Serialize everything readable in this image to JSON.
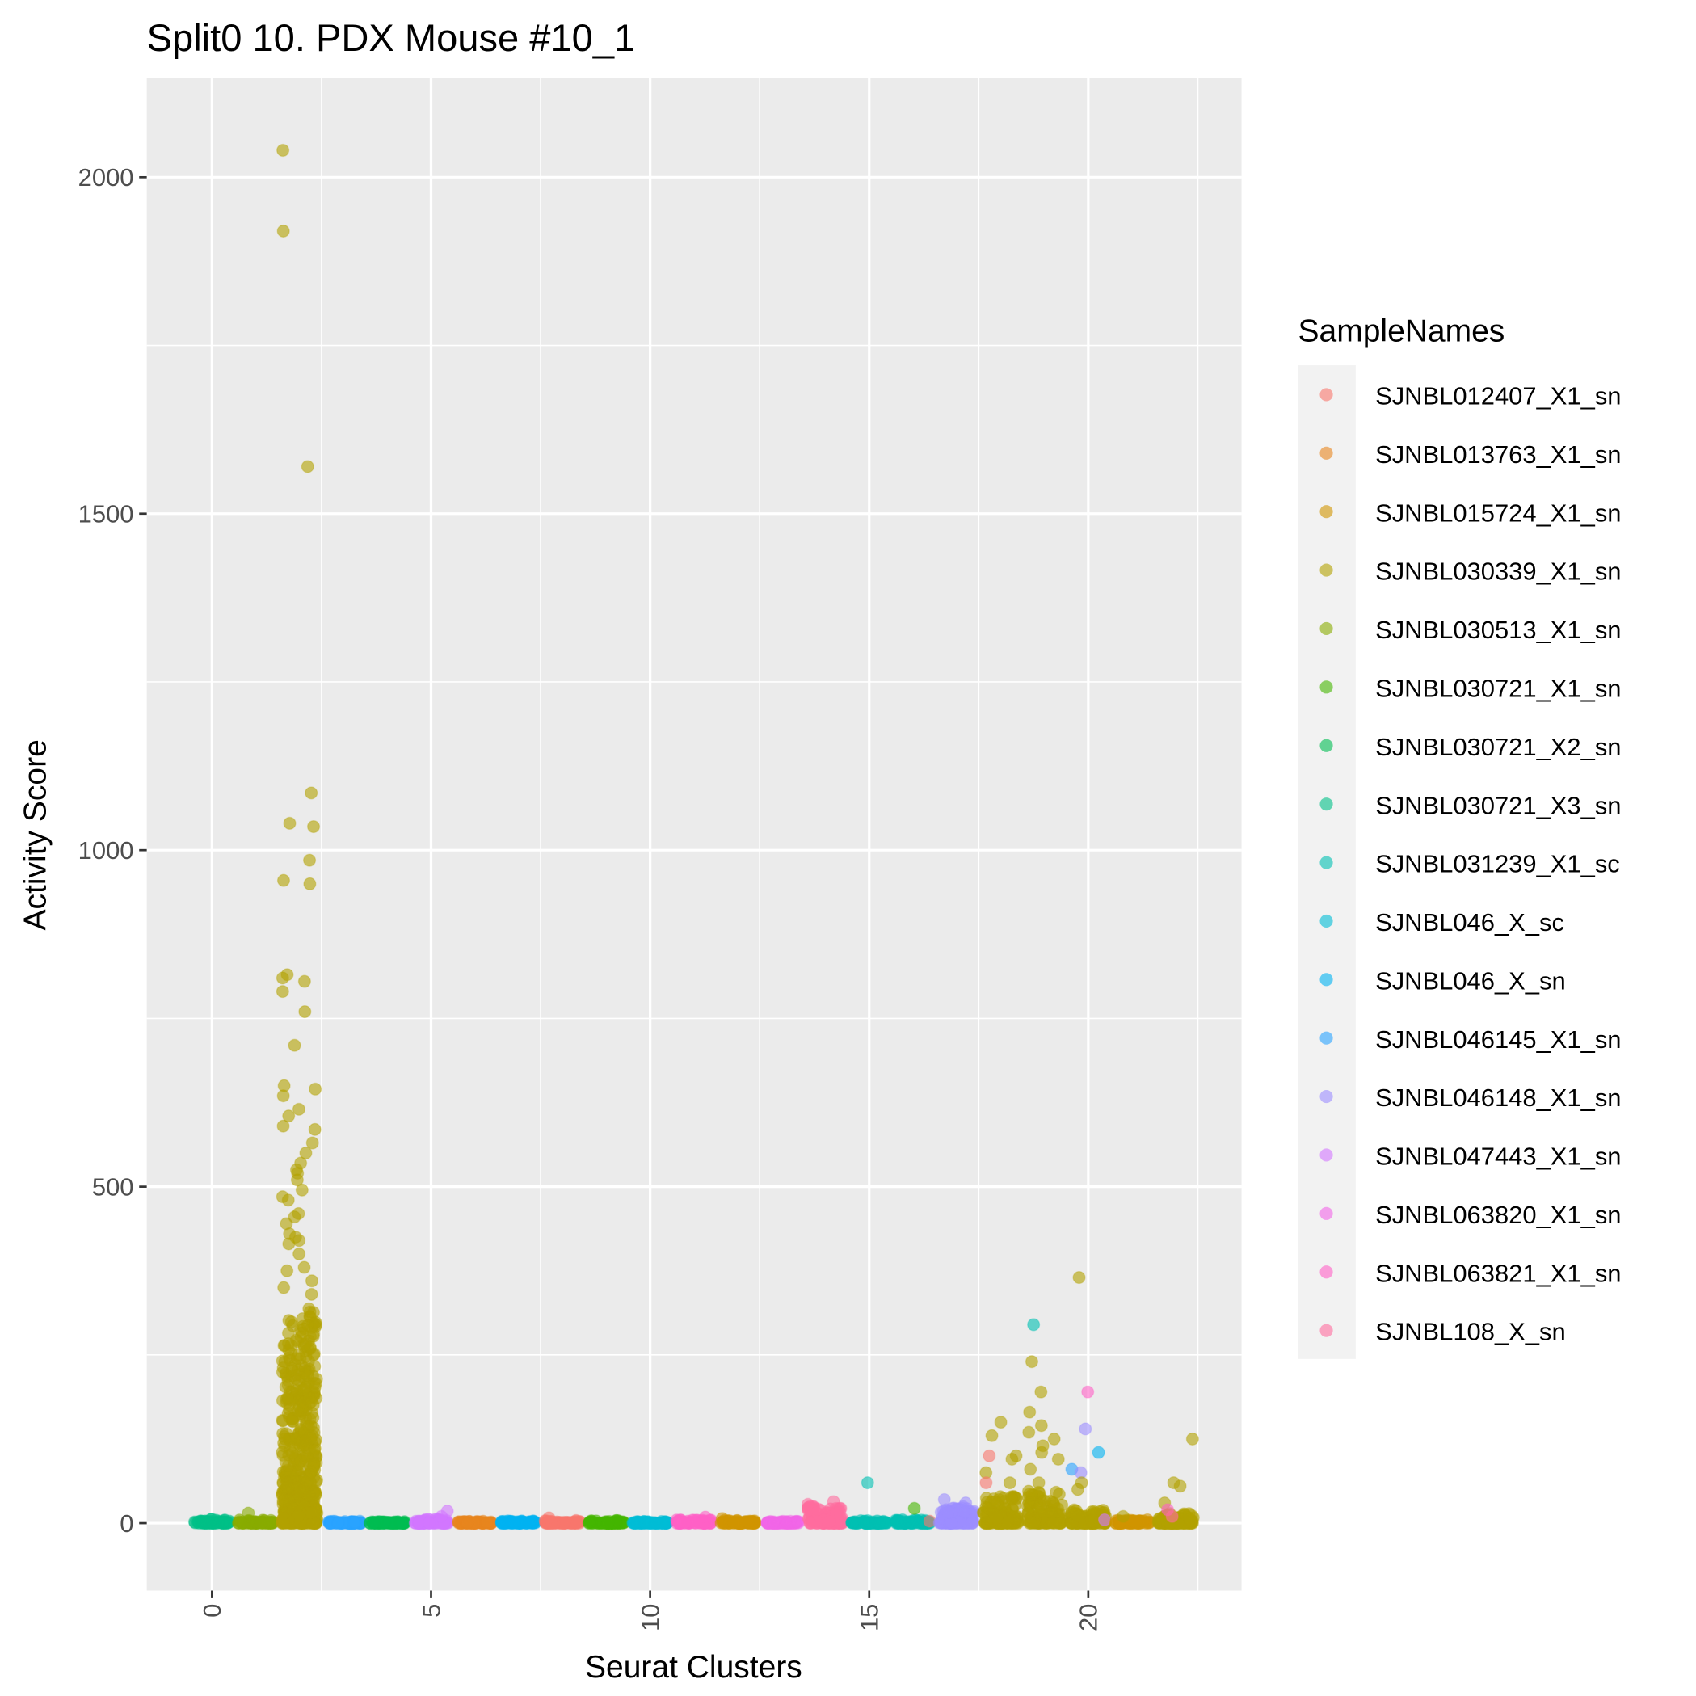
{
  "chart_data": {
    "type": "scatter",
    "title": "Split0 10. PDX Mouse #10_1",
    "xlabel": "Seurat Clusters",
    "ylabel": "Activity Score",
    "xlim": [
      -1.5,
      23.5
    ],
    "ylim": [
      -100,
      2150
    ],
    "x_ticks": [
      "0",
      "5",
      "10",
      "15",
      "20"
    ],
    "x_tick_values": [
      0,
      5,
      10,
      15,
      20
    ],
    "y_ticks": [
      "0",
      "500",
      "1000",
      "1500",
      "2000"
    ],
    "y_tick_values": [
      0,
      500,
      1000,
      1500,
      2000
    ],
    "grid": true,
    "legend": {
      "title": "SampleNames",
      "placement": "right",
      "entries": [
        "SJNBL012407_X1_sn",
        "SJNBL013763_X1_sn",
        "SJNBL015724_X1_sn",
        "SJNBL030339_X1_sn",
        "SJNBL030513_X1_sn",
        "SJNBL030721_X1_sn",
        "SJNBL030721_X2_sn",
        "SJNBL030721_X3_sn",
        "SJNBL031239_X1_sc",
        "SJNBL046_X_sc",
        "SJNBL046_X_sn",
        "SJNBL046145_X1_sn",
        "SJNBL046148_X1_sn",
        "SJNBL047443_X1_sn",
        "SJNBL063820_X1_sn",
        "SJNBL063821_X1_sn",
        "SJNBL108_X_sn"
      ],
      "colors": [
        "#F8766D",
        "#E7851E",
        "#D09400",
        "#B2A100",
        "#89AC00",
        "#45B500",
        "#00BC51",
        "#00C087",
        "#00C0B2",
        "#00BCD6",
        "#00B3F2",
        "#29A3FF",
        "#9C8DFF",
        "#D277FF",
        "#F166E8",
        "#FF61C7",
        "#FF6C9E"
      ]
    },
    "clusters": [
      {
        "cluster": 0,
        "sample": 7,
        "dense_max": 6,
        "outliers": []
      },
      {
        "cluster": 1,
        "sample": 4,
        "dense_max": 5,
        "outliers": [
          [
            4,
            15
          ]
        ]
      },
      {
        "cluster": 2,
        "sample": 3,
        "dense_max": 320,
        "outliers": [
          [
            3,
            2040
          ],
          [
            3,
            1920
          ],
          [
            3,
            1570
          ],
          [
            3,
            1085
          ],
          [
            3,
            1040
          ],
          [
            3,
            1035
          ],
          [
            3,
            985
          ],
          [
            3,
            955
          ],
          [
            3,
            950
          ],
          [
            3,
            815
          ],
          [
            3,
            810
          ],
          [
            3,
            805
          ],
          [
            3,
            790
          ],
          [
            3,
            760
          ],
          [
            3,
            710
          ],
          [
            3,
            650
          ],
          [
            3,
            645
          ],
          [
            3,
            635
          ],
          [
            3,
            615
          ],
          [
            3,
            605
          ],
          [
            3,
            590
          ],
          [
            3,
            585
          ],
          [
            3,
            565
          ],
          [
            3,
            550
          ],
          [
            3,
            535
          ],
          [
            3,
            525
          ],
          [
            3,
            520
          ],
          [
            3,
            510
          ],
          [
            3,
            495
          ],
          [
            3,
            485
          ],
          [
            3,
            480
          ],
          [
            3,
            460
          ],
          [
            3,
            455
          ],
          [
            3,
            445
          ],
          [
            3,
            430
          ],
          [
            3,
            425
          ],
          [
            3,
            420
          ],
          [
            3,
            415
          ],
          [
            3,
            400
          ],
          [
            3,
            380
          ],
          [
            3,
            375
          ],
          [
            3,
            360
          ],
          [
            3,
            350
          ],
          [
            3,
            340
          ]
        ]
      },
      {
        "cluster": 3,
        "sample": 11,
        "dense_max": 3,
        "outliers": []
      },
      {
        "cluster": 4,
        "sample": 6,
        "dense_max": 3,
        "outliers": []
      },
      {
        "cluster": 5,
        "sample": 13,
        "dense_max": 6,
        "outliers": [
          [
            13,
            18
          ],
          [
            13,
            10
          ]
        ]
      },
      {
        "cluster": 6,
        "sample": 1,
        "dense_max": 3,
        "outliers": []
      },
      {
        "cluster": 7,
        "sample": 10,
        "dense_max": 4,
        "outliers": []
      },
      {
        "cluster": 8,
        "sample": 0,
        "dense_max": 4,
        "outliers": [
          [
            0,
            8
          ]
        ]
      },
      {
        "cluster": 9,
        "sample": 5,
        "dense_max": 4,
        "outliers": []
      },
      {
        "cluster": 10,
        "sample": 9,
        "dense_max": 3,
        "outliers": []
      },
      {
        "cluster": 11,
        "sample": 15,
        "dense_max": 5,
        "outliers": [
          [
            15,
            9
          ]
        ]
      },
      {
        "cluster": 12,
        "sample": 2,
        "dense_max": 4,
        "outliers": [
          [
            2,
            7
          ]
        ]
      },
      {
        "cluster": 13,
        "sample": 14,
        "dense_max": 3,
        "outliers": []
      },
      {
        "cluster": 14,
        "sample": 16,
        "dense_max": 25,
        "outliers": [
          [
            16,
            32
          ],
          [
            16,
            28
          ]
        ]
      },
      {
        "cluster": 15,
        "sample": 8,
        "dense_max": 4,
        "outliers": [
          [
            8,
            60
          ]
        ]
      },
      {
        "cluster": 16,
        "sample": 8,
        "dense_max": 5,
        "outliers": [
          [
            5,
            22
          ],
          [
            0,
            3
          ]
        ]
      },
      {
        "cluster": 17,
        "sample": 12,
        "dense_max": 25,
        "outliers": [
          [
            12,
            35
          ],
          [
            12,
            30
          ]
        ]
      },
      {
        "cluster": 18,
        "sample": 3,
        "dense_max": 40,
        "outliers": [
          [
            3,
            150
          ],
          [
            3,
            130
          ],
          [
            3,
            100
          ],
          [
            3,
            95
          ],
          [
            3,
            75
          ],
          [
            3,
            60
          ],
          [
            0,
            100
          ],
          [
            0,
            60
          ]
        ]
      },
      {
        "cluster": 19,
        "sample": 3,
        "dense_max": 50,
        "outliers": [
          [
            8,
            295
          ],
          [
            3,
            240
          ],
          [
            3,
            195
          ],
          [
            3,
            165
          ],
          [
            3,
            145
          ],
          [
            3,
            135
          ],
          [
            3,
            125
          ],
          [
            3,
            115
          ],
          [
            3,
            105
          ],
          [
            3,
            95
          ],
          [
            3,
            80
          ],
          [
            3,
            60
          ]
        ]
      },
      {
        "cluster": 20,
        "sample": 3,
        "dense_max": 20,
        "outliers": [
          [
            3,
            365
          ],
          [
            15,
            195
          ],
          [
            12,
            140
          ],
          [
            10,
            105
          ],
          [
            11,
            80
          ],
          [
            12,
            75
          ],
          [
            3,
            60
          ],
          [
            3,
            50
          ],
          [
            13,
            5
          ]
        ]
      },
      {
        "cluster": 21,
        "sample": 2,
        "dense_max": 5,
        "outliers": [
          [
            3,
            10
          ]
        ]
      },
      {
        "cluster": 22,
        "sample": 3,
        "dense_max": 15,
        "outliers": [
          [
            3,
            125
          ],
          [
            3,
            60
          ],
          [
            3,
            55
          ],
          [
            3,
            30
          ],
          [
            15,
            20
          ],
          [
            16,
            10
          ]
        ]
      }
    ]
  }
}
